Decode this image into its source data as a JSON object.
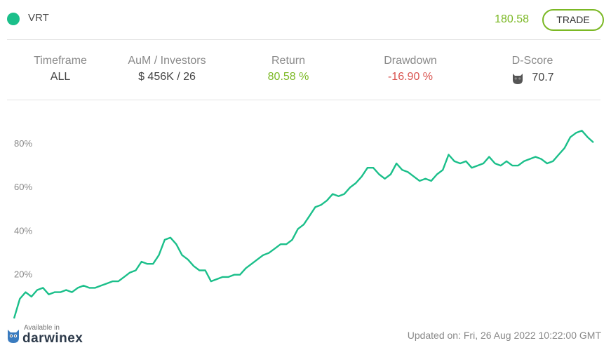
{
  "header": {
    "ticker": "VRT",
    "price": "180.58",
    "trade_label": "TRADE"
  },
  "stats": [
    {
      "label": "Timeframe",
      "value": "ALL"
    },
    {
      "label": "AuM / Investors",
      "value": "$ 456K / 26"
    },
    {
      "label": "Return",
      "value": "80.58 %"
    },
    {
      "label": "Drawdown",
      "value": "-16.90 %"
    },
    {
      "label": "D-Score",
      "value": "70.7",
      "icon": "owl-icon"
    }
  ],
  "colors": {
    "accent": "#1bbf8a",
    "positive": "#7bb824",
    "negative": "#d9534f",
    "line": "#1bbf8a"
  },
  "chart_data": {
    "type": "line",
    "ylabel": "",
    "xlabel": "",
    "yticks": [
      "20%",
      "40%",
      "60%",
      "80%"
    ],
    "ytick_values": [
      20,
      40,
      60,
      80
    ],
    "ylim": [
      0,
      95
    ],
    "grid": false,
    "series": [
      {
        "values": [
          0,
          9,
          12,
          10,
          13,
          14,
          11,
          12,
          12,
          13,
          12,
          14,
          15,
          14,
          14,
          15,
          16,
          17,
          17,
          19,
          21,
          22,
          26,
          25,
          25,
          29,
          36,
          37,
          34,
          29,
          27,
          24,
          22,
          22,
          17,
          18,
          19,
          19,
          20,
          20,
          23,
          25,
          27,
          29,
          30,
          32,
          34,
          34,
          36,
          41,
          43,
          47,
          51,
          52,
          54,
          57,
          56,
          57,
          60,
          62,
          65,
          69,
          69,
          66,
          64,
          66,
          71,
          68,
          67,
          65,
          63,
          64,
          63,
          66,
          68,
          75,
          72,
          71,
          72,
          69,
          70,
          71,
          74,
          71,
          70,
          72,
          70,
          70,
          72,
          73,
          74,
          73,
          71,
          72,
          75,
          78,
          83,
          85,
          86,
          83,
          80.6
        ]
      }
    ]
  },
  "footer": {
    "available_in": "Available in",
    "brand": "darwinex",
    "updated": "Updated on: Fri, 26 Aug 2022 10:22:00 GMT"
  }
}
